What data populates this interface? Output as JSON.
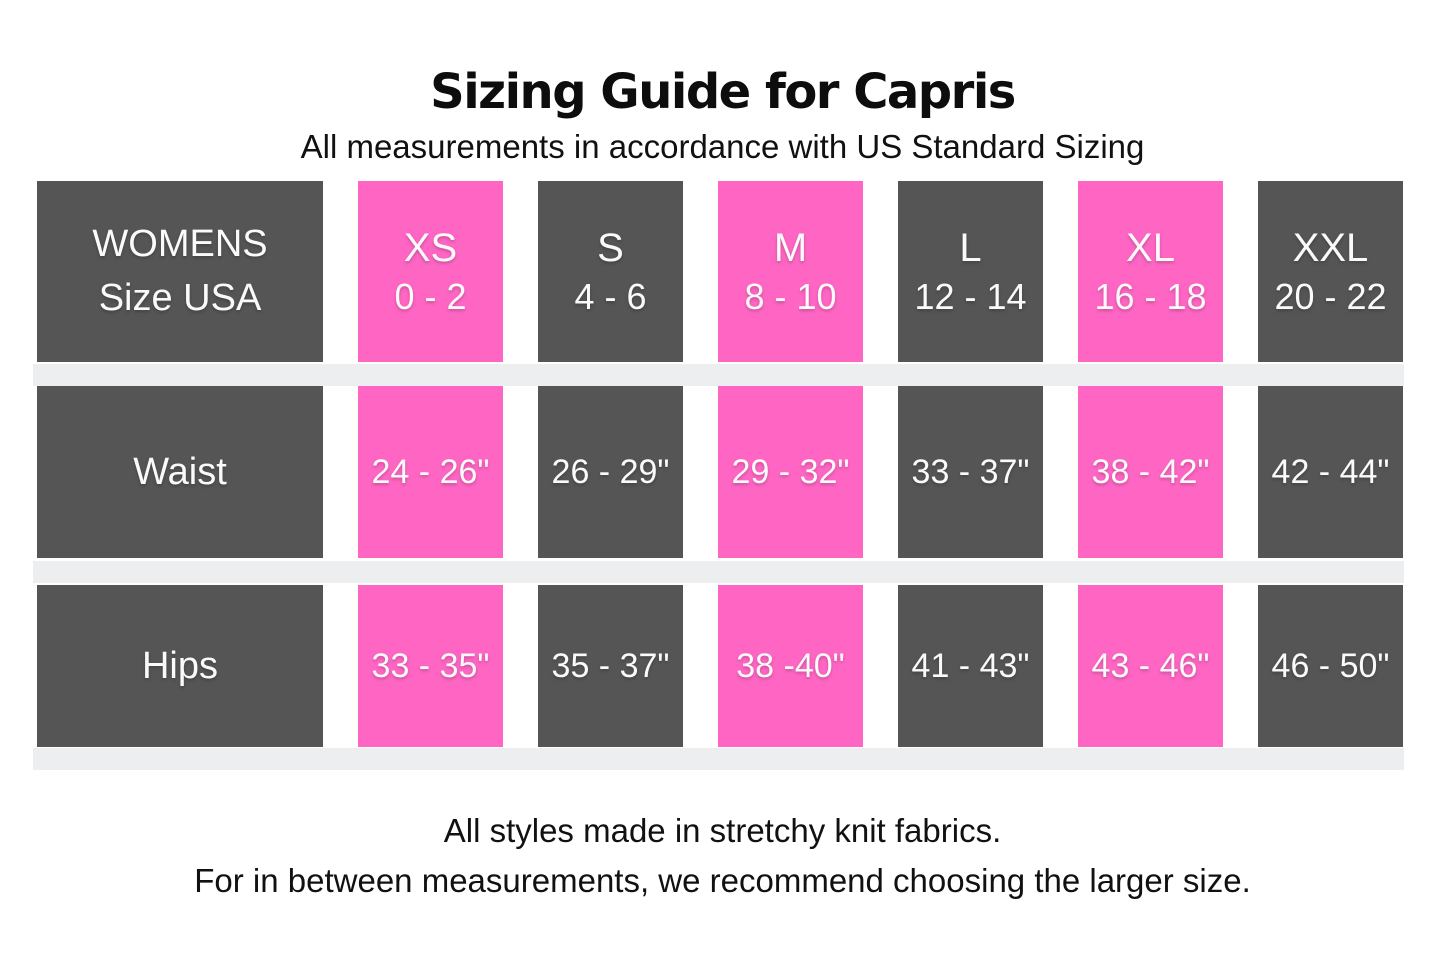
{
  "title": "Sizing Guide for Capris",
  "subtitle": "All measurements in accordance with US Standard Sizing",
  "colors": {
    "dark_cell": "#555555",
    "pink_cell": "#FF66C4",
    "separator_band": "#EDEEF0",
    "cell_text": "#FAFAFA",
    "body_text": "#111111"
  },
  "table": {
    "corner": {
      "line1": "WOMENS",
      "line2": "Size USA"
    },
    "columns": [
      {
        "size": "XS",
        "range": "0 - 2",
        "highlight": true
      },
      {
        "size": "S",
        "range": "4 - 6",
        "highlight": false
      },
      {
        "size": "M",
        "range": "8 - 10",
        "highlight": true
      },
      {
        "size": "L",
        "range": "12 - 14",
        "highlight": false
      },
      {
        "size": "XL",
        "range": "16 - 18",
        "highlight": true
      },
      {
        "size": "XXL",
        "range": "20 - 22",
        "highlight": false
      }
    ],
    "rows": [
      {
        "label": "Waist",
        "values": [
          "24 - 26\"",
          "26 - 29\"",
          "29 - 32\"",
          "33 - 37\"",
          "38 - 42\"",
          "42 - 44\""
        ]
      },
      {
        "label": "Hips",
        "values": [
          "33 - 35\"",
          "35 - 37\"",
          "38 -40\"",
          "41 - 43\"",
          "43 - 46\"",
          "46 - 50\""
        ]
      }
    ]
  },
  "footer": {
    "line1": "All styles made in stretchy knit fabrics.",
    "line2": "For in between measurements, we recommend choosing the larger size."
  },
  "chart_data": {
    "type": "table",
    "title": "Sizing Guide for Capris",
    "subtitle": "All measurements in accordance with US Standard Sizing",
    "columns": [
      "WOMENS Size USA",
      "XS 0 - 2",
      "S 4 - 6",
      "M 8 - 10",
      "L 12 - 14",
      "XL 16 - 18",
      "XXL 20 - 22"
    ],
    "rows": [
      [
        "Waist",
        "24 - 26\"",
        "26 - 29\"",
        "29 - 32\"",
        "33 - 37\"",
        "38 - 42\"",
        "42 - 44\""
      ],
      [
        "Hips",
        "33 - 35\"",
        "35 - 37\"",
        "38 -40\"",
        "41 - 43\"",
        "43 - 46\"",
        "46 - 50\""
      ]
    ],
    "notes": [
      "All styles made in stretchy knit fabrics.",
      "For in between measurements, we recommend choosing the larger size."
    ],
    "layout_hints": {
      "highlighted_columns": [
        "XS",
        "M",
        "XL"
      ],
      "highlight_color": "#FF66C4",
      "default_color": "#555555"
    }
  }
}
